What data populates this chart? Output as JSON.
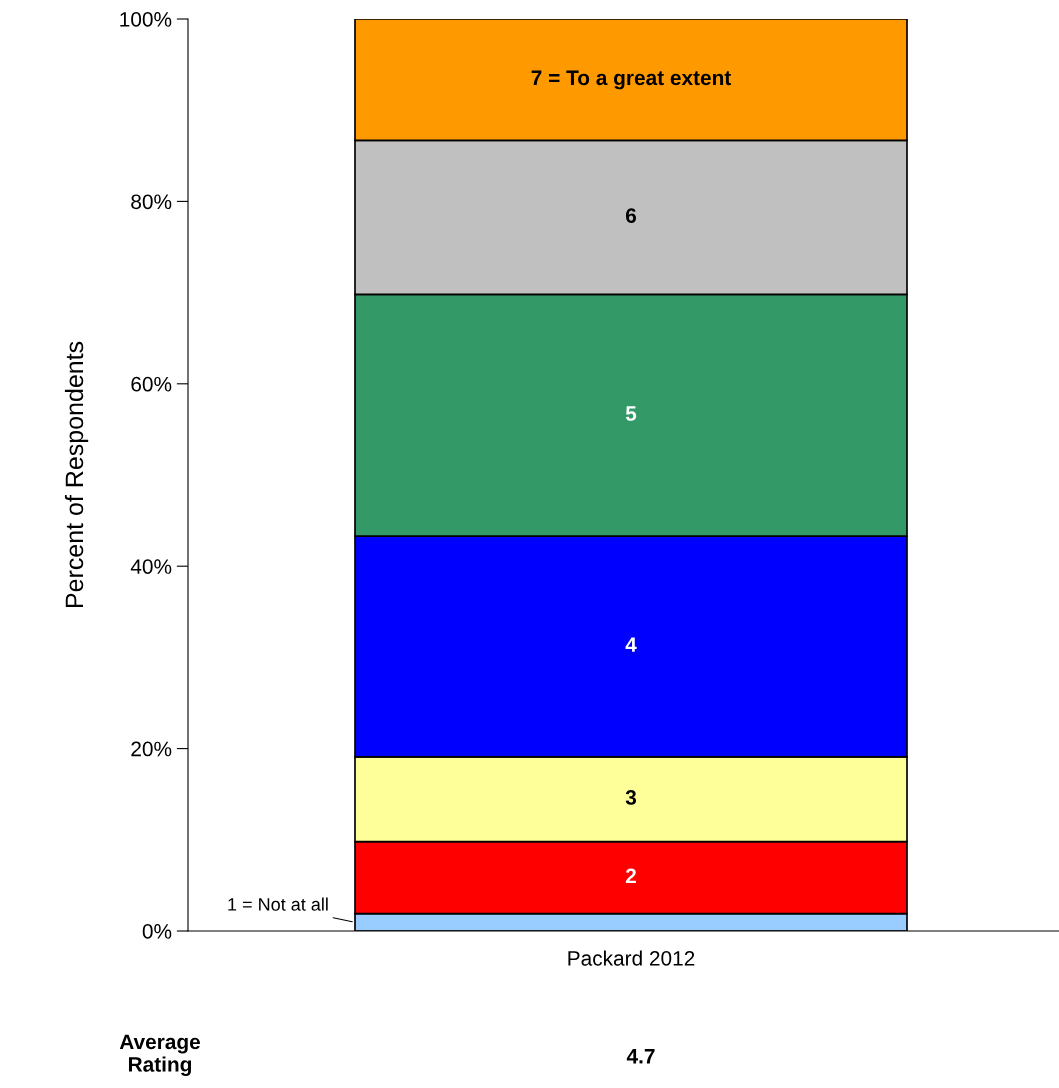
{
  "chart_data": {
    "type": "bar",
    "stacked": true,
    "ylabel": "Percent of Respondents",
    "categories": [
      "Packard 2012"
    ],
    "series": [
      {
        "name": "1 = Not at all",
        "color": "#99ccff",
        "values": [
          1.9
        ]
      },
      {
        "name": "2",
        "color": "#ff0000",
        "values": [
          7.9
        ]
      },
      {
        "name": "3",
        "color": "#ffff99",
        "values": [
          9.3
        ]
      },
      {
        "name": "4",
        "color": "#0000ff",
        "values": [
          24.2
        ]
      },
      {
        "name": "5",
        "color": "#339966",
        "values": [
          26.5
        ]
      },
      {
        "name": "6",
        "color": "#c0c0c0",
        "values": [
          16.9
        ]
      },
      {
        "name": "7 = To a great extent",
        "color": "#ff9900",
        "values": [
          13.3
        ]
      }
    ],
    "ylim": [
      0,
      100
    ],
    "yticks": [
      {
        "value": 0,
        "label": "0%"
      },
      {
        "value": 20,
        "label": "20%"
      },
      {
        "value": 40,
        "label": "40%"
      },
      {
        "value": 60,
        "label": "60%"
      },
      {
        "value": 80,
        "label": "80%"
      },
      {
        "value": 100,
        "label": "100%"
      }
    ],
    "grid": false,
    "legend": false,
    "annotations": [
      "Average Rating",
      "4.7"
    ]
  }
}
